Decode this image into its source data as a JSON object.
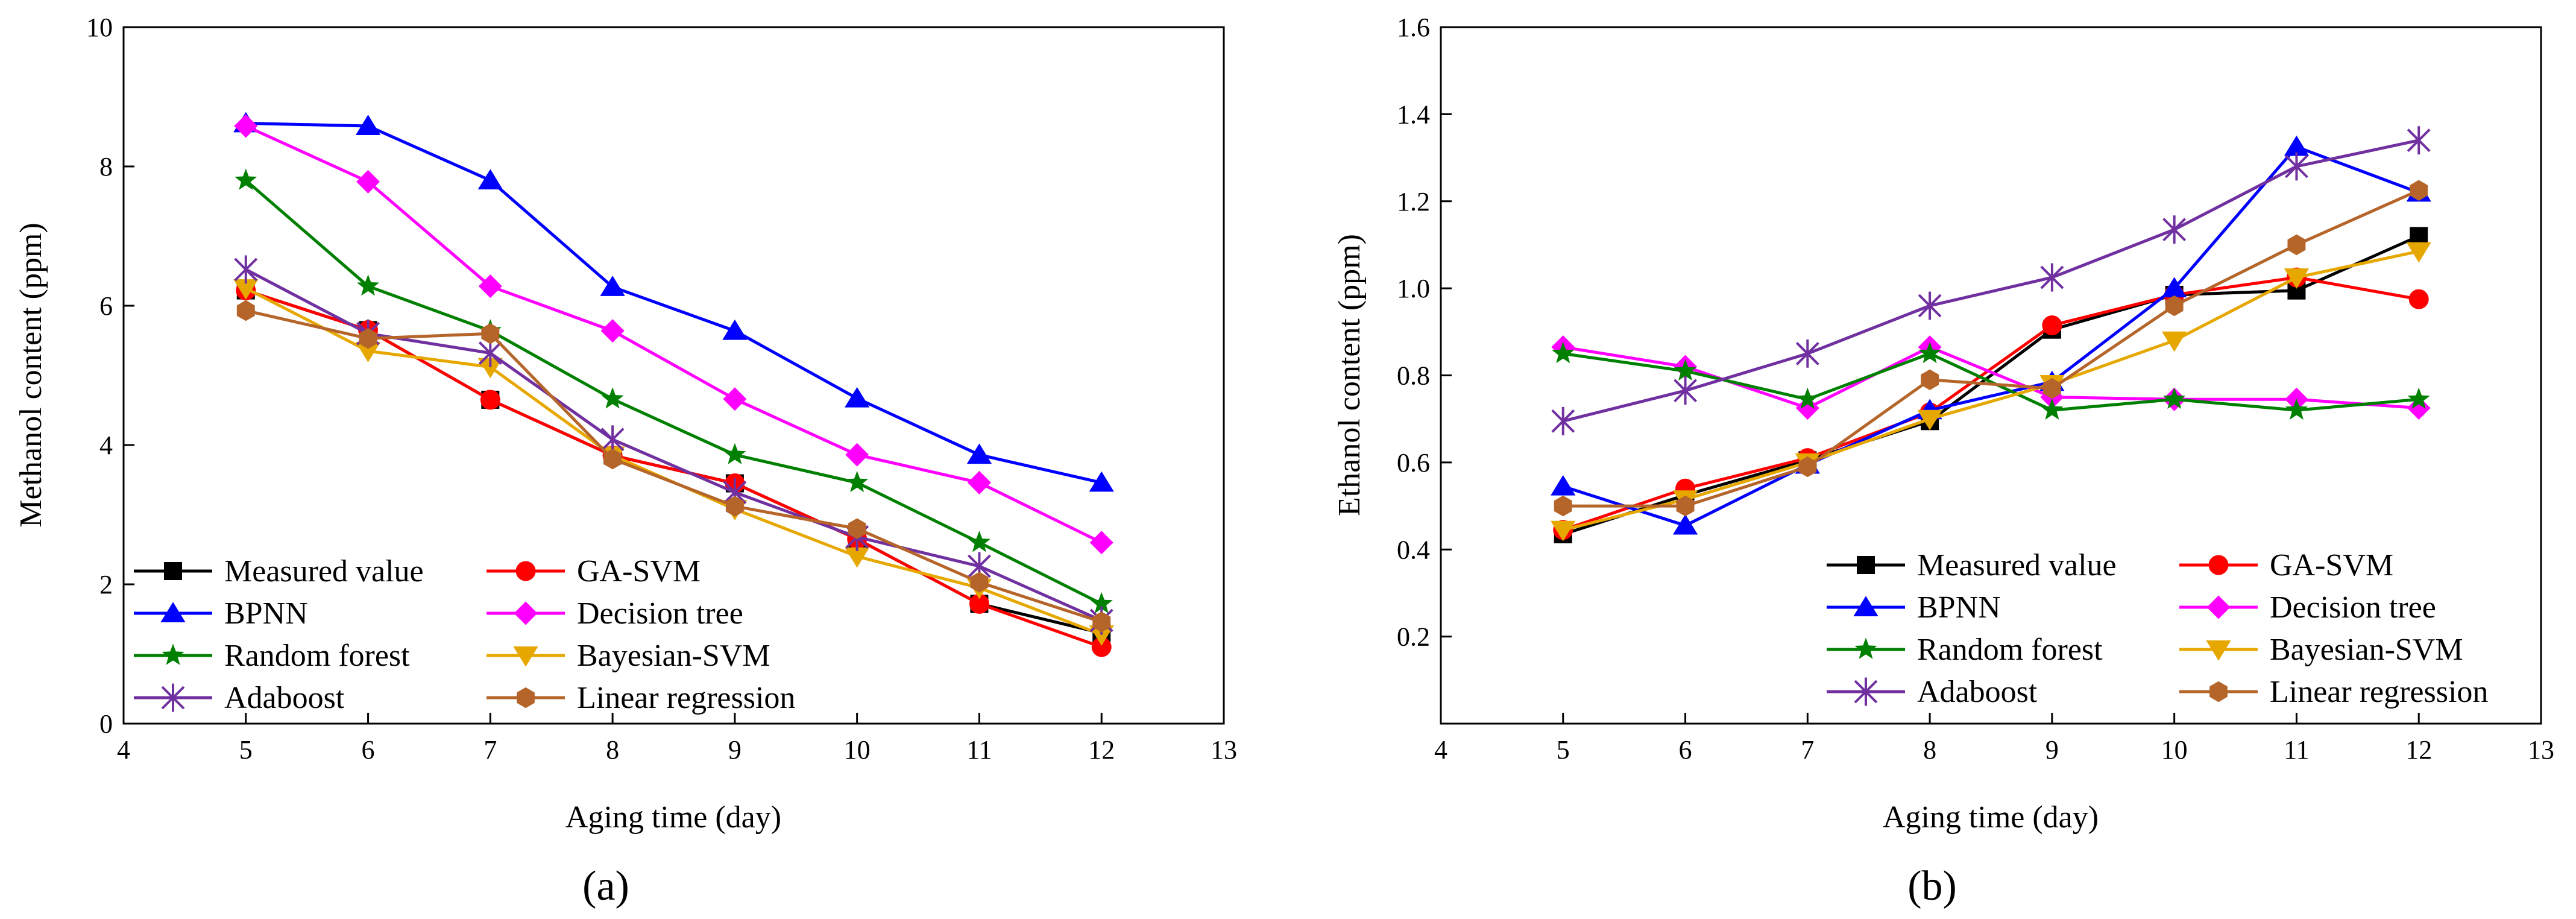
{
  "chart_data": [
    {
      "type": "line",
      "panel_label": "(a)",
      "xlabel": "Aging time (day)",
      "ylabel": "Methanol content (ppm)",
      "xlim": [
        4,
        13
      ],
      "ylim": [
        0,
        10
      ],
      "xticks": [
        4,
        5,
        6,
        7,
        8,
        9,
        10,
        11,
        12,
        13
      ],
      "yticks": [
        0,
        2,
        4,
        6,
        8,
        10
      ],
      "x": [
        5,
        6,
        7,
        8,
        9,
        10,
        11,
        12
      ],
      "legend_position": "bottom-left",
      "series": [
        {
          "name": "Measured value",
          "color": "#000000",
          "marker": "square",
          "values": [
            6.22,
            5.65,
            4.65,
            3.85,
            3.45,
            2.65,
            1.72,
            1.3
          ]
        },
        {
          "name": "GA-SVM",
          "color": "#ff0000",
          "marker": "circle",
          "values": [
            6.22,
            5.65,
            4.65,
            3.85,
            3.45,
            2.65,
            1.72,
            1.1
          ]
        },
        {
          "name": "BPNN",
          "color": "#0000ff",
          "marker": "triangle-up",
          "values": [
            8.62,
            8.58,
            7.8,
            6.27,
            5.64,
            4.67,
            3.86,
            3.46
          ]
        },
        {
          "name": "Decision tree",
          "color": "#ff00ff",
          "marker": "diamond",
          "values": [
            8.58,
            7.78,
            6.28,
            5.64,
            4.66,
            3.86,
            3.46,
            2.6
          ]
        },
        {
          "name": "Random forest",
          "color": "#008000",
          "marker": "star",
          "values": [
            7.8,
            6.28,
            5.64,
            4.66,
            3.86,
            3.46,
            2.6,
            1.72
          ]
        },
        {
          "name": "Bayesian-SVM",
          "color": "#e6a800",
          "marker": "triangle-down",
          "values": [
            6.25,
            5.35,
            5.12,
            3.85,
            3.08,
            2.4,
            1.95,
            1.28
          ]
        },
        {
          "name": "Adaboost",
          "color": "#7030a0",
          "marker": "asterisk",
          "values": [
            6.52,
            5.6,
            5.32,
            4.08,
            3.32,
            2.68,
            2.26,
            1.48
          ]
        },
        {
          "name": "Linear regression",
          "color": "#b5652a",
          "marker": "hexagon",
          "values": [
            5.93,
            5.53,
            5.6,
            3.8,
            3.12,
            2.8,
            2.03,
            1.46
          ]
        }
      ]
    },
    {
      "type": "line",
      "panel_label": "(b)",
      "xlabel": "Aging time (day)",
      "ylabel": "Ethanol content (ppm)",
      "xlim": [
        4,
        13
      ],
      "ylim": [
        0,
        1.6
      ],
      "xticks": [
        4,
        5,
        6,
        7,
        8,
        9,
        10,
        11,
        12,
        13
      ],
      "yticks": [
        0.2,
        0.4,
        0.6,
        0.8,
        1.0,
        1.2,
        1.4,
        1.6
      ],
      "ytick_labels": [
        "0.2",
        "0.4",
        "0.6",
        "0.8",
        "1.0",
        "1.2",
        "1.4",
        "1.6"
      ],
      "x": [
        5,
        6,
        7,
        8,
        9,
        10,
        11,
        12
      ],
      "legend_position": "bottom-right",
      "series": [
        {
          "name": "Measured value",
          "color": "#000000",
          "marker": "square",
          "values": [
            0.435,
            0.525,
            0.605,
            0.695,
            0.905,
            0.985,
            0.995,
            1.12
          ]
        },
        {
          "name": "GA-SVM",
          "color": "#ff0000",
          "marker": "circle",
          "values": [
            0.445,
            0.54,
            0.61,
            0.715,
            0.915,
            0.985,
            1.025,
            0.975
          ]
        },
        {
          "name": "BPNN",
          "color": "#0000ff",
          "marker": "triangle-up",
          "values": [
            0.545,
            0.455,
            0.595,
            0.72,
            0.785,
            1.0,
            1.325,
            1.22
          ]
        },
        {
          "name": "Decision tree",
          "color": "#ff00ff",
          "marker": "diamond",
          "values": [
            0.865,
            0.82,
            0.725,
            0.865,
            0.75,
            0.745,
            0.745,
            0.725
          ]
        },
        {
          "name": "Random forest",
          "color": "#008000",
          "marker": "star",
          "values": [
            0.85,
            0.81,
            0.745,
            0.85,
            0.72,
            0.745,
            0.72,
            0.745
          ]
        },
        {
          "name": "Bayesian-SVM",
          "color": "#e6a800",
          "marker": "triangle-down",
          "values": [
            0.445,
            0.515,
            0.6,
            0.7,
            0.78,
            0.88,
            1.025,
            1.085
          ]
        },
        {
          "name": "Adaboost",
          "color": "#7030a0",
          "marker": "asterisk",
          "values": [
            0.695,
            0.765,
            0.85,
            0.96,
            1.025,
            1.135,
            1.28,
            1.34
          ]
        },
        {
          "name": "Linear regression",
          "color": "#b5652a",
          "marker": "hexagon",
          "values": [
            0.5,
            0.5,
            0.59,
            0.79,
            0.77,
            0.96,
            1.1,
            1.225
          ]
        }
      ]
    }
  ]
}
